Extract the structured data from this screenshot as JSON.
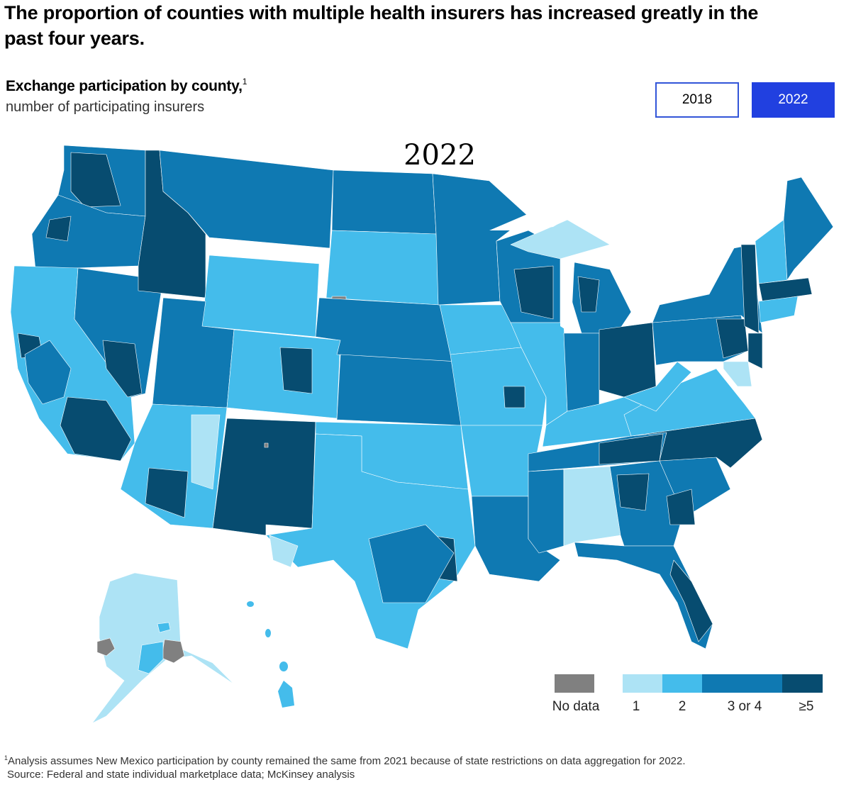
{
  "header": {
    "title": "The proportion of counties with multiple health insurers has increased greatly in the past four years.",
    "subtitle": "Exchange participation by county,",
    "subtitle_footnote_mark": "1",
    "subtitle_detail": "number of participating insurers"
  },
  "year_toggle": {
    "options": [
      {
        "label": "2018",
        "selected": false
      },
      {
        "label": "2022",
        "selected": true
      }
    ]
  },
  "map": {
    "year_label": "2022",
    "colors": {
      "no_data": "#808080",
      "one": "#ADE3F5",
      "two": "#44BCEB",
      "three_or_four": "#0F79B2",
      "five_plus": "#074C70"
    }
  },
  "legend": {
    "items": [
      {
        "label": "No data",
        "color": "#808080"
      },
      {
        "label": "1",
        "color": "#ADE3F5"
      },
      {
        "label": "2",
        "color": "#44BCEB"
      },
      {
        "label": "3 or 4",
        "color": "#0F79B2"
      },
      {
        "label": "≥5",
        "color": "#074C70"
      }
    ]
  },
  "footnotes": {
    "mark": "1",
    "note": "Analysis assumes New Mexico participation by county remained the same from 2021 because of state restrictions on data aggregation for 2022.",
    "source": "Source: Federal and state individual marketplace data; McKinsey analysis"
  }
}
